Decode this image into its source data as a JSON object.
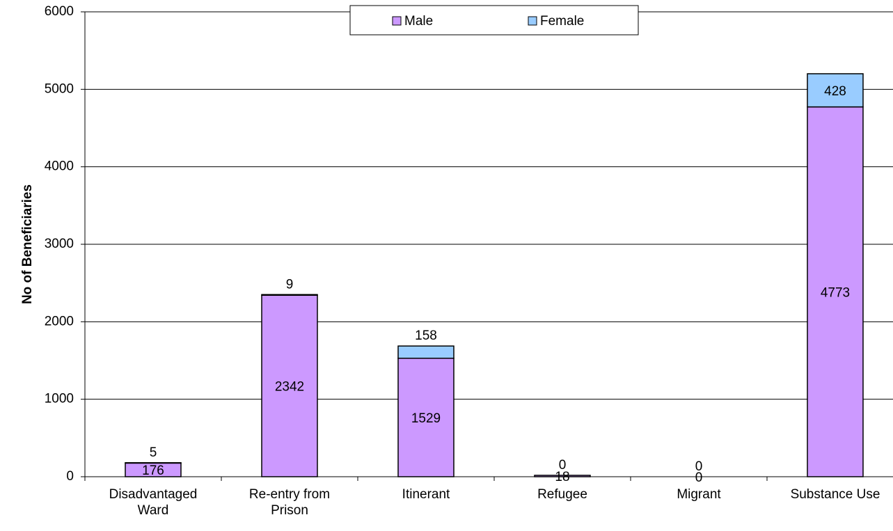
{
  "chart_data": {
    "type": "stacked_bar",
    "y_label": "No of Beneficiaries",
    "categories": [
      "Disadvantaged Ward",
      "Re-entry from Prison",
      "Itinerant",
      "Refugee",
      "Migrant",
      "Substance Use"
    ],
    "series": [
      {
        "name": "Male",
        "color": "#cc99ff",
        "values": [
          176,
          2342,
          1529,
          18,
          0,
          4773
        ]
      },
      {
        "name": "Female",
        "color": "#99ccff",
        "values": [
          5,
          9,
          158,
          0,
          0,
          428
        ]
      }
    ],
    "ylim": [
      0,
      6000
    ],
    "yticks": [
      0,
      1000,
      2000,
      3000,
      4000,
      5000,
      6000
    ],
    "grid": true,
    "legend": "top"
  }
}
